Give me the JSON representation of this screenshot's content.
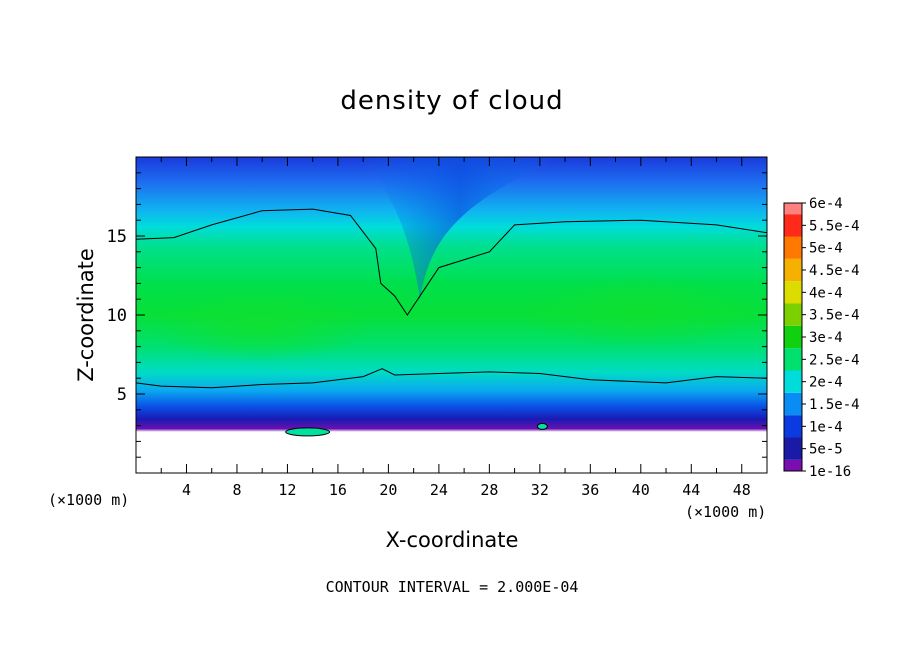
{
  "chart_data": {
    "type": "heatmap",
    "title": "density of cloud",
    "xlabel": "X-coordinate",
    "ylabel": "Z-coordinate",
    "x_unit": "(×1000 m)",
    "y_unit": "(×1000 m)",
    "xlim": [
      0,
      50
    ],
    "ylim": [
      0,
      20
    ],
    "x_ticks": [
      4,
      8,
      12,
      16,
      20,
      24,
      28,
      32,
      36,
      40,
      44,
      48
    ],
    "y_ticks": [
      5,
      10,
      15
    ],
    "footnote": "CONTOUR INTERVAL = 2.000E-04",
    "contour_interval": 0.0002,
    "colorbar": [
      {
        "label": "1e-16",
        "value": 1e-16,
        "color": "#7a0fb0"
      },
      {
        "label": "5e-5",
        "value": 5e-05,
        "color": "#1a1aa6"
      },
      {
        "label": "1e-4",
        "value": 0.0001,
        "color": "#0a3ae0"
      },
      {
        "label": "1.5e-4",
        "value": 0.00015,
        "color": "#0a8cf5"
      },
      {
        "label": "2e-4",
        "value": 0.0002,
        "color": "#00dcdc"
      },
      {
        "label": "2.5e-4",
        "value": 0.00025,
        "color": "#00e06e"
      },
      {
        "label": "3e-4",
        "value": 0.0003,
        "color": "#10d010"
      },
      {
        "label": "3.5e-4",
        "value": 0.00035,
        "color": "#7cd000"
      },
      {
        "label": "4e-4",
        "value": 0.0004,
        "color": "#dcdc00"
      },
      {
        "label": "4.5e-4",
        "value": 0.00045,
        "color": "#f5b000"
      },
      {
        "label": "5e-4",
        "value": 0.0005,
        "color": "#ff7800"
      },
      {
        "label": "5.5e-4",
        "value": 0.00055,
        "color": "#ff2a1a"
      },
      {
        "label": "6e-4",
        "value": 0.0006,
        "color": "#ff8080"
      }
    ],
    "field_profile": {
      "cloud_base_km": 2.3,
      "contour_2e-4_lower_km": 6.0,
      "contour_2e-4_upper_km": 16.0,
      "contour_2e-4_dip": {
        "x": 21.5,
        "z": 10.0
      },
      "core_density": 0.00027,
      "core_center_km": 10.0
    }
  }
}
